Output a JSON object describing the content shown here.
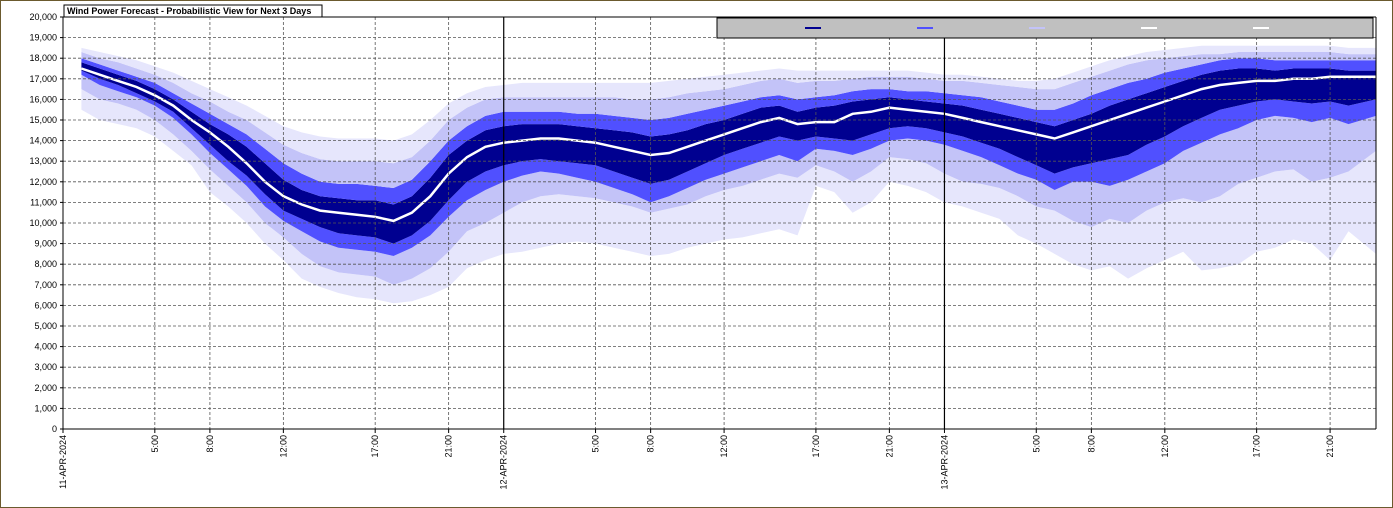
{
  "colors": {
    "background": "#ffffff",
    "band_outer": "#e6e6fc",
    "band_p10_90": "#c3c3f8",
    "band_p25_75": "#5050ff",
    "band_core": "#000090",
    "median_line": "#ffffff",
    "legend_bg": "#c0c0c0",
    "window_border": "#6b5a2e"
  },
  "chart_data": {
    "type": "area",
    "title": "Wind Power Forecast - Probabilistic View for Next 3 Days",
    "xlabel": "",
    "ylabel": "",
    "ylim": [
      0,
      20000
    ],
    "xlim": [
      0,
      71.5
    ],
    "grid": "dashed horizontal at 1,000; dashed vertical at labeled hours; solid vertical at day boundaries",
    "legend_position": "top-right",
    "legend": {
      "entries": [
        {
          "label": "",
          "color": "#000090"
        },
        {
          "label": "",
          "color": "#5050ff"
        },
        {
          "label": "",
          "color": "#c3c3f8"
        },
        {
          "label": "",
          "color": "#ffffff"
        },
        {
          "label": "",
          "color": "#ffffff"
        }
      ]
    },
    "y_ticks": [
      0,
      1000,
      2000,
      3000,
      4000,
      5000,
      6000,
      7000,
      8000,
      9000,
      10000,
      11000,
      12000,
      13000,
      14000,
      15000,
      16000,
      17000,
      18000,
      19000,
      20000
    ],
    "y_tick_labels": [
      "0",
      "1,000",
      "2,000",
      "3,000",
      "4,000",
      "5,000",
      "6,000",
      "7,000",
      "8,000",
      "9,000",
      "10,000",
      "11,000",
      "12,000",
      "13,000",
      "14,000",
      "15,000",
      "16,000",
      "17,000",
      "18,000",
      "19,000",
      "20,000"
    ],
    "x_ticks": [
      {
        "hour": 0,
        "label": "11-APR-2024",
        "day_boundary": true
      },
      {
        "hour": 5,
        "label": "5:00"
      },
      {
        "hour": 8,
        "label": "8:00"
      },
      {
        "hour": 12,
        "label": "12:00"
      },
      {
        "hour": 17,
        "label": "17:00"
      },
      {
        "hour": 21,
        "label": "21:00"
      },
      {
        "hour": 24,
        "label": "12-APR-2024",
        "day_boundary": true
      },
      {
        "hour": 29,
        "label": "5:00"
      },
      {
        "hour": 32,
        "label": "8:00"
      },
      {
        "hour": 36,
        "label": "12:00"
      },
      {
        "hour": 41,
        "label": "17:00"
      },
      {
        "hour": 45,
        "label": "21:00"
      },
      {
        "hour": 48,
        "label": "13-APR-2024",
        "day_boundary": true
      },
      {
        "hour": 53,
        "label": "5:00"
      },
      {
        "hour": 56,
        "label": "8:00"
      },
      {
        "hour": 60,
        "label": "12:00"
      },
      {
        "hour": 65,
        "label": "17:00"
      },
      {
        "hour": 69,
        "label": "21:00"
      }
    ],
    "x": [
      1,
      2,
      3,
      4,
      5,
      6,
      7,
      8,
      9,
      10,
      11,
      12,
      13,
      14,
      15,
      16,
      17,
      18,
      19,
      20,
      21,
      22,
      23,
      24,
      25,
      26,
      27,
      28,
      29,
      30,
      31,
      32,
      33,
      34,
      35,
      36,
      37,
      38,
      39,
      40,
      41,
      42,
      43,
      44,
      45,
      46,
      47,
      48,
      49,
      50,
      51,
      52,
      53,
      54,
      55,
      56,
      57,
      58,
      59,
      60,
      61,
      62,
      63,
      64,
      65,
      66,
      67,
      68,
      69,
      70,
      71.5
    ],
    "series": [
      {
        "values": [
          15500,
          15000,
          14800,
          14600,
          14200,
          13500,
          12800,
          11500,
          10800,
          10000,
          9000,
          8200,
          7300,
          6900,
          6600,
          6400,
          6300,
          6100,
          6200,
          6500,
          6900,
          7800,
          8200,
          8500,
          8600,
          8800,
          9000,
          9100,
          9000,
          8800,
          8600,
          8400,
          8500,
          8800,
          9000,
          9200,
          9300,
          9500,
          9700,
          9400,
          11800,
          11500,
          10500,
          11000,
          12000,
          11800,
          11500,
          11000,
          10800,
          10500,
          10200,
          9400,
          9000,
          8500,
          8000,
          7700,
          7900,
          7300,
          7800,
          8200,
          8600,
          7700,
          7800,
          8000,
          8600,
          8800,
          9200,
          9000,
          8200,
          9600,
          8500
        ]
      },
      {
        "values": [
          16500,
          16000,
          15800,
          15500,
          15000,
          14300,
          13500,
          12600,
          11800,
          11000,
          10000,
          9300,
          8500,
          7900,
          7600,
          7500,
          7400,
          7000,
          7300,
          7800,
          8600,
          9600,
          10000,
          10500,
          11000,
          11300,
          11400,
          11300,
          11200,
          11000,
          10800,
          10500,
          10700,
          10900,
          11300,
          11600,
          11800,
          12100,
          12400,
          12200,
          12800,
          12500,
          12000,
          12500,
          13200,
          13100,
          12900,
          12400,
          12000,
          11900,
          11700,
          11300,
          10800,
          10600,
          10100,
          9800,
          10200,
          10000,
          10600,
          11000,
          11200,
          11000,
          11300,
          11900,
          12200,
          12500,
          12600,
          12000,
          12200,
          12500,
          13500
        ]
      },
      {
        "values": [
          17200,
          16700,
          16400,
          16100,
          15700,
          15100,
          14300,
          13400,
          12600,
          11800,
          10800,
          10100,
          9600,
          9100,
          8800,
          8700,
          8600,
          8400,
          8800,
          9400,
          10300,
          11100,
          11600,
          12000,
          12300,
          12500,
          12400,
          12200,
          12000,
          11700,
          11400,
          11000,
          11300,
          11700,
          12100,
          12400,
          12700,
          13000,
          13300,
          13000,
          13600,
          13500,
          13300,
          13600,
          14000,
          14100,
          14000,
          13800,
          13500,
          13200,
          12800,
          12400,
          12100,
          11600,
          12000,
          12000,
          11800,
          12100,
          12500,
          12900,
          13500,
          13900,
          14300,
          14600,
          15000,
          15200,
          15100,
          14900,
          15100,
          14800,
          15200
        ]
      },
      {
        "values": [
          17400,
          17000,
          16700,
          16300,
          15900,
          15400,
          14600,
          13800,
          13000,
          12300,
          11400,
          10600,
          10200,
          9800,
          9500,
          9400,
          9300,
          9000,
          9400,
          10100,
          11100,
          12000,
          12500,
          12800,
          13000,
          13100,
          13000,
          12900,
          12800,
          12500,
          12200,
          11900,
          12100,
          12500,
          12900,
          13300,
          13600,
          13900,
          14200,
          14000,
          14200,
          14100,
          14000,
          14300,
          14600,
          14700,
          14600,
          14400,
          14200,
          13900,
          13600,
          13200,
          12800,
          12400,
          12700,
          12900,
          13100,
          13300,
          13800,
          14200,
          14700,
          15100,
          15500,
          15700,
          15900,
          16000,
          15900,
          15800,
          15900,
          15700,
          16000
        ]
      },
      {
        "values": [
          17500,
          17200,
          16900,
          16600,
          16200,
          15700,
          15000,
          14400,
          13700,
          12900,
          12000,
          11300,
          10900,
          10600,
          10500,
          10400,
          10300,
          10100,
          10500,
          11300,
          12400,
          13200,
          13700,
          13900,
          14000,
          14100,
          14100,
          14000,
          13900,
          13700,
          13500,
          13300,
          13400,
          13700,
          14000,
          14300,
          14600,
          14900,
          15100,
          14800,
          14900,
          14900,
          15300,
          15400,
          15600,
          15500,
          15400,
          15300,
          15100,
          14900,
          14700,
          14500,
          14300,
          14100,
          14400,
          14700,
          15000,
          15300,
          15600,
          15900,
          16200,
          16500,
          16700,
          16800,
          16900,
          16900,
          17000,
          17000,
          17100,
          17100,
          17100
        ]
      },
      {
        "values": [
          17800,
          17500,
          17200,
          16900,
          16500,
          16000,
          15400,
          14800,
          14300,
          13700,
          12900,
          12100,
          11600,
          11300,
          11200,
          11100,
          11100,
          10900,
          11300,
          12200,
          13300,
          14000,
          14500,
          14700,
          14800,
          14800,
          14800,
          14700,
          14600,
          14500,
          14400,
          14200,
          14300,
          14500,
          14800,
          15000,
          15300,
          15600,
          15700,
          15400,
          15600,
          15700,
          15900,
          16000,
          16100,
          16000,
          15900,
          15800,
          15700,
          15500,
          15300,
          15100,
          14900,
          14700,
          15000,
          15300,
          15700,
          16000,
          16300,
          16600,
          16900,
          17200,
          17400,
          17500,
          17500,
          17400,
          17500,
          17500,
          17500,
          17400,
          17400
        ]
      },
      {
        "values": [
          18000,
          17700,
          17400,
          17100,
          16800,
          16300,
          15800,
          15300,
          14800,
          14300,
          13600,
          12900,
          12400,
          12000,
          11900,
          11900,
          11800,
          11700,
          12100,
          13000,
          14000,
          14700,
          15200,
          15400,
          15400,
          15400,
          15400,
          15300,
          15300,
          15200,
          15100,
          15000,
          15100,
          15300,
          15500,
          15700,
          15900,
          16100,
          16200,
          16000,
          16100,
          16200,
          16400,
          16500,
          16500,
          16400,
          16400,
          16300,
          16200,
          16100,
          15900,
          15700,
          15500,
          15500,
          15800,
          16200,
          16500,
          16800,
          17000,
          17300,
          17500,
          17700,
          17900,
          18000,
          18000,
          17900,
          17900,
          17900,
          17900,
          17900,
          17900
        ]
      },
      {
        "values": [
          18300,
          18000,
          17800,
          17500,
          17200,
          16800,
          16300,
          15900,
          15400,
          15000,
          14400,
          13800,
          13400,
          13100,
          13000,
          13000,
          13000,
          12900,
          13200,
          14000,
          15000,
          15600,
          16000,
          16100,
          16100,
          16100,
          16100,
          16100,
          16100,
          16100,
          16000,
          16000,
          16100,
          16300,
          16400,
          16500,
          16700,
          16900,
          17000,
          16800,
          16900,
          16900,
          17000,
          17100,
          17100,
          17100,
          17000,
          16900,
          16900,
          16800,
          16700,
          16600,
          16500,
          16500,
          16800,
          17100,
          17400,
          17700,
          17900,
          18000,
          18100,
          18200,
          18200,
          18300,
          18300,
          18300,
          18300,
          18300,
          18300,
          18200,
          18200
        ]
      },
      {
        "values": [
          18500,
          18300,
          18100,
          17900,
          17600,
          17300,
          16900,
          16500,
          16100,
          15700,
          15200,
          14700,
          14400,
          14200,
          14100,
          14100,
          14100,
          14000,
          14300,
          15000,
          15800,
          16300,
          16600,
          16700,
          16800,
          16800,
          16800,
          16800,
          16800,
          16800,
          16800,
          16800,
          16900,
          17000,
          17100,
          17200,
          17300,
          17400,
          17500,
          17400,
          17400,
          17400,
          17400,
          17400,
          17400,
          17400,
          17300,
          17200,
          17200,
          17100,
          17000,
          16900,
          16900,
          17000,
          17300,
          17600,
          17900,
          18100,
          18300,
          18400,
          18500,
          18600,
          18600,
          18600,
          18600,
          18600,
          18600,
          18600,
          18600,
          18500,
          18500
        ]
      }
    ]
  }
}
